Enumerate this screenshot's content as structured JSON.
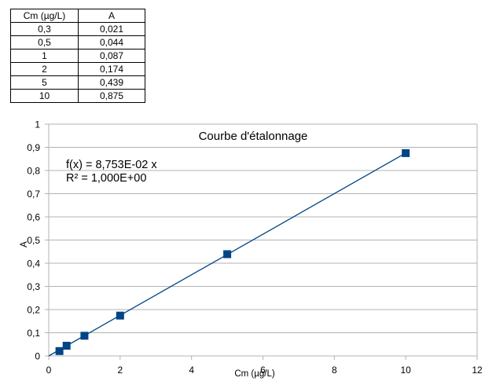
{
  "table": {
    "headers": [
      "Cm (µg/L)",
      "A"
    ],
    "rows": [
      [
        "0,3",
        "0,021"
      ],
      [
        "0,5",
        "0,044"
      ],
      [
        "1",
        "0,087"
      ],
      [
        "2",
        "0,174"
      ],
      [
        "5",
        "0,439"
      ],
      [
        "10",
        "0,875"
      ]
    ]
  },
  "chart_data": {
    "type": "scatter",
    "title": "Courbe d'étalonnage",
    "xlabel": "Cm (µg/L)",
    "ylabel": "A",
    "xlim": [
      0,
      12
    ],
    "ylim": [
      0,
      1
    ],
    "x_ticks": [
      "0",
      "2",
      "4",
      "6",
      "8",
      "10",
      "12"
    ],
    "y_ticks": [
      "0",
      "0,1",
      "0,2",
      "0,3",
      "0,4",
      "0,5",
      "0,6",
      "0,7",
      "0,8",
      "0,9",
      "1"
    ],
    "grid": "horizontal",
    "series": [
      {
        "x": [
          0.3,
          0.5,
          1,
          2,
          5,
          10
        ],
        "y": [
          0.021,
          0.044,
          0.087,
          0.174,
          0.439,
          0.875
        ]
      }
    ],
    "trendline": {
      "slope": 0.08753,
      "intercept": 0,
      "x_range": [
        0,
        10
      ]
    },
    "annotations": [
      "f(x) = 8,753E-02 x",
      "R² = 1,000E+00"
    ],
    "colors": {
      "series": "#004586",
      "grid": "#b3b3b3",
      "axis": "#b3b3b3"
    }
  }
}
